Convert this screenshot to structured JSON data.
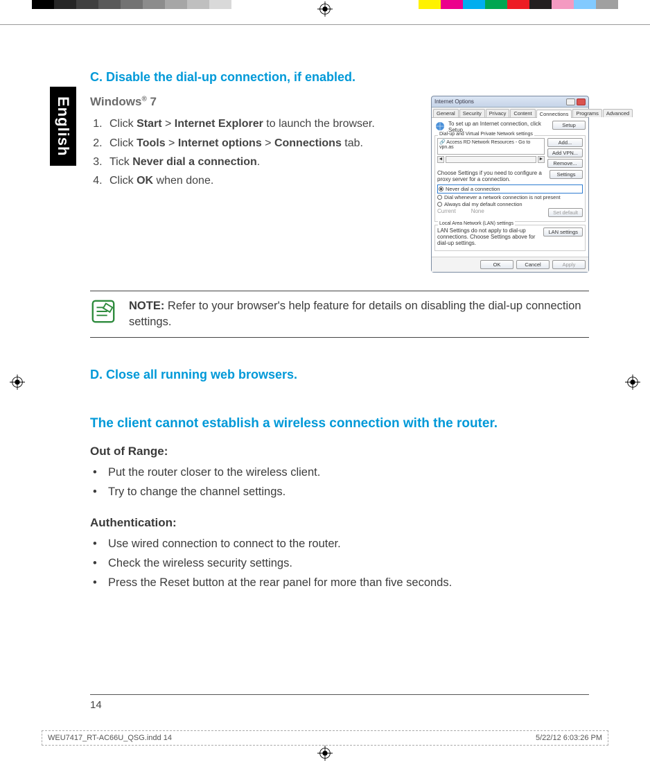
{
  "colorbar": {
    "grays": [
      "#000000",
      "#262626",
      "#404040",
      "#595959",
      "#737373",
      "#8c8c8c",
      "#a6a6a6",
      "#bfbfbf",
      "#d9d9d9",
      "#ffffff"
    ],
    "colors": [
      "#fff200",
      "#ec008c",
      "#00aeef",
      "#00a651",
      "#ed1c24",
      "#231f20",
      "#f49ac1",
      "#82caff",
      "#a0a0a0"
    ]
  },
  "language_tab": "English",
  "section_c": {
    "heading": "C.   Disable the dial-up connection, if enabled.",
    "subhead_pre": "Windows",
    "subhead_reg": "®",
    "subhead_post": " 7",
    "steps": [
      {
        "pre": "Click ",
        "b1": "Start",
        "mid": " > ",
        "b2": "Internet Explorer",
        "post": " to launch the browser."
      },
      {
        "pre": "Click ",
        "b1": "Tools",
        "mid": " > ",
        "b2": "Internet options",
        "mid2": " > ",
        "b3": "Connections",
        "post": " tab."
      },
      {
        "pre": "Tick ",
        "b1": "Never dial a connection",
        "post": "."
      },
      {
        "pre": "Click ",
        "b1": "OK",
        "post": " when done."
      }
    ]
  },
  "dialog": {
    "title": "Internet Options",
    "tabs": [
      "General",
      "Security",
      "Privacy",
      "Content",
      "Connections",
      "Programs",
      "Advanced"
    ],
    "active_tab": "Connections",
    "setup_text": "To set up an Internet connection, click Setup.",
    "setup_btn": "Setup",
    "group1_title": "Dial-up and Virtual Private Network settings",
    "list_item": "Access RD Network Resources - Go to vpn.as",
    "btn_add": "Add...",
    "btn_addvpn": "Add VPN...",
    "btn_remove": "Remove...",
    "proxy_text": "Choose Settings if you need to configure a proxy server for a connection.",
    "btn_settings": "Settings",
    "radio_never": "Never dial a connection",
    "radio_when": "Dial whenever a network connection is not present",
    "radio_always": "Always dial my default connection",
    "current_label": "Current",
    "current_val": "None",
    "btn_setdefault": "Set default",
    "group2_title": "Local Area Network (LAN) settings",
    "lan_text": "LAN Settings do not apply to dial-up connections. Choose Settings above for dial-up settings.",
    "btn_lan": "LAN settings",
    "btn_ok": "OK",
    "btn_cancel": "Cancel",
    "btn_apply": "Apply"
  },
  "note": {
    "label": "NOTE:",
    "text": "    Refer to your browser's help feature for details on disabling the dial-up connection settings."
  },
  "section_d": {
    "heading": "D.   Close all running web browsers."
  },
  "blue2": "The client cannot establish a wireless connection with the router.",
  "out_of_range": {
    "title": "Out of Range:",
    "items": [
      "Put the router closer to the wireless client.",
      "Try to change the channel settings."
    ]
  },
  "auth": {
    "title": "Authentication:",
    "items": [
      "Use wired connection to connect to the router.",
      "Check the wireless security settings.",
      "Press the Reset button at the rear panel for more than five seconds."
    ]
  },
  "page_number": "14",
  "footer": {
    "left": "WEU7417_RT-AC66U_QSG.indd   14",
    "right": "5/22/12   6:03:26 PM"
  }
}
